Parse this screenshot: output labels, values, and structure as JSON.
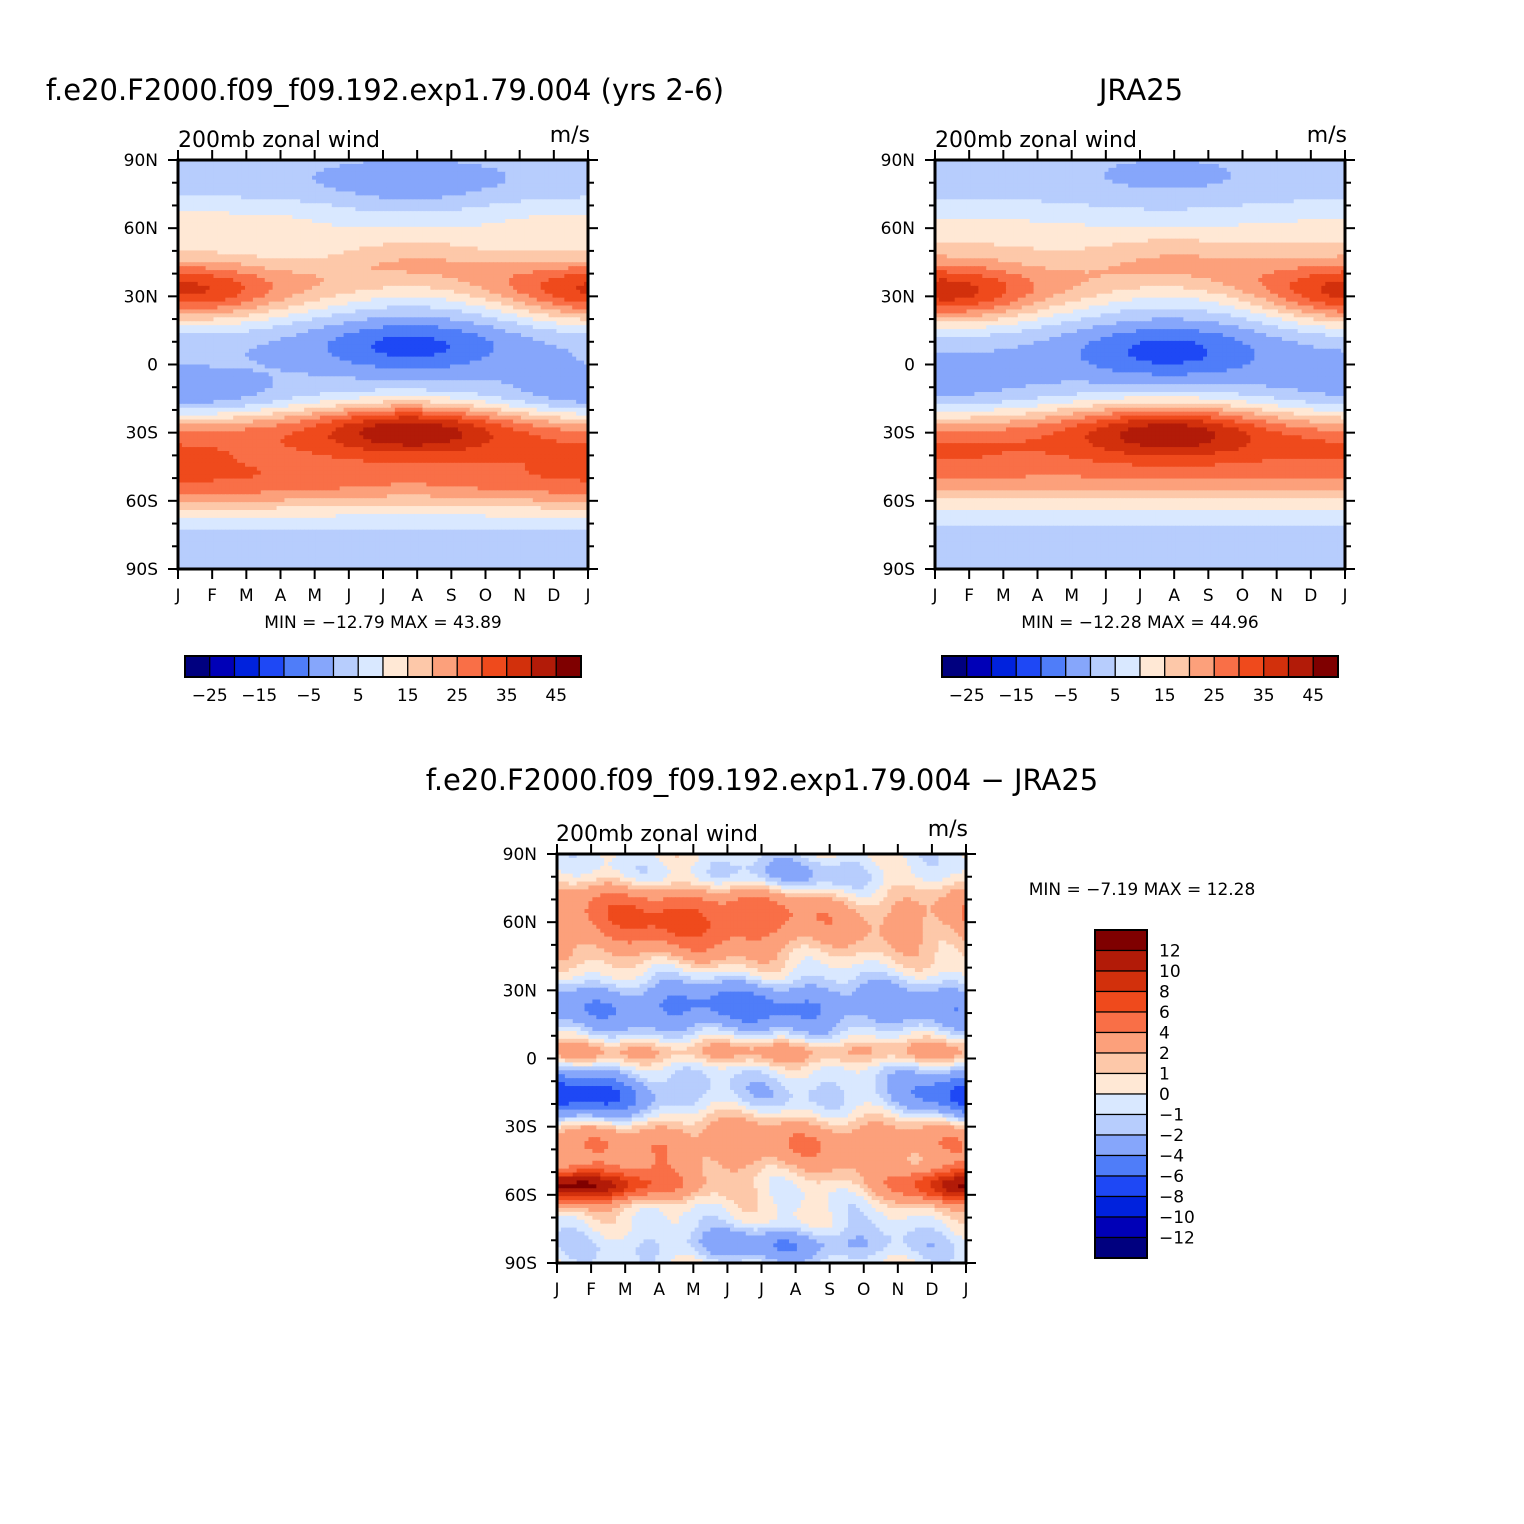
{
  "palette": [
    "#00007f",
    "#0000b7",
    "#0022dd",
    "#1e48f5",
    "#4f7df9",
    "#86a6fb",
    "#b7cdfd",
    "#d9e8ff",
    "#ffe8d5",
    "#fdc8a9",
    "#fca07b",
    "#f96f47",
    "#ef4a1c",
    "#d2300c",
    "#b21b08",
    "#7f0000"
  ],
  "chart_data": [
    {
      "id": "model",
      "type": "heatmap",
      "title": "f.e20.F2000.f09_f09.192.exp1.79.004 (yrs 2-6)",
      "subtitle": "200mb zonal wind",
      "units": "m/s",
      "x_ticks": [
        "J",
        "F",
        "M",
        "A",
        "M",
        "J",
        "J",
        "A",
        "S",
        "O",
        "N",
        "D",
        "J"
      ],
      "y_ticks": [
        "90N",
        "60N",
        "30N",
        "0",
        "30S",
        "60S",
        "90S"
      ],
      "xlim": [
        0,
        12
      ],
      "ylim": [
        -90,
        90
      ],
      "stats_text": "MIN = −12.79 MAX =   43.89",
      "min": -12.79,
      "max": 43.89,
      "colorbar": {
        "orientation": "horizontal",
        "levels": [
          -30,
          -25,
          -20,
          -15,
          -10,
          -5,
          0,
          5,
          10,
          15,
          20,
          25,
          30,
          35,
          40,
          45
        ],
        "labels": [
          "−25",
          "−15",
          "−5",
          "5",
          "15",
          "25",
          "35",
          "45"
        ]
      }
    },
    {
      "id": "obs",
      "type": "heatmap",
      "title": "JRA25",
      "subtitle": "200mb zonal wind",
      "units": "m/s",
      "x_ticks": [
        "J",
        "F",
        "M",
        "A",
        "M",
        "J",
        "J",
        "A",
        "S",
        "O",
        "N",
        "D",
        "J"
      ],
      "y_ticks": [
        "90N",
        "60N",
        "30N",
        "0",
        "30S",
        "60S",
        "90S"
      ],
      "xlim": [
        0,
        12
      ],
      "ylim": [
        -90,
        90
      ],
      "stats_text": "MIN = −12.28 MAX =   44.96",
      "min": -12.28,
      "max": 44.96,
      "colorbar": {
        "orientation": "horizontal",
        "levels": [
          -30,
          -25,
          -20,
          -15,
          -10,
          -5,
          0,
          5,
          10,
          15,
          20,
          25,
          30,
          35,
          40,
          45
        ],
        "labels": [
          "−25",
          "−15",
          "−5",
          "5",
          "15",
          "25",
          "35",
          "45"
        ]
      }
    },
    {
      "id": "diff",
      "type": "heatmap",
      "title": "f.e20.F2000.f09_f09.192.exp1.79.004 − JRA25",
      "subtitle": "200mb zonal wind",
      "units": "m/s",
      "x_ticks": [
        "J",
        "F",
        "M",
        "A",
        "M",
        "J",
        "J",
        "A",
        "S",
        "O",
        "N",
        "D",
        "J"
      ],
      "y_ticks": [
        "90N",
        "60N",
        "30N",
        "0",
        "30S",
        "60S",
        "90S"
      ],
      "xlim": [
        0,
        12
      ],
      "ylim": [
        -90,
        90
      ],
      "stats_text": "MIN =   −7.19 MAX =   12.28",
      "min": -7.19,
      "max": 12.28,
      "colorbar": {
        "orientation": "vertical",
        "levels": [
          -14,
          -12,
          -10,
          -8,
          -6,
          -4,
          -2,
          -1,
          0,
          1,
          2,
          4,
          6,
          8,
          10,
          12
        ],
        "labels": [
          "12",
          "10",
          "8",
          "6",
          "4",
          "2",
          "1",
          "0",
          "−1",
          "−2",
          "−4",
          "−6",
          "−8",
          "−10",
          "−12"
        ]
      }
    }
  ]
}
